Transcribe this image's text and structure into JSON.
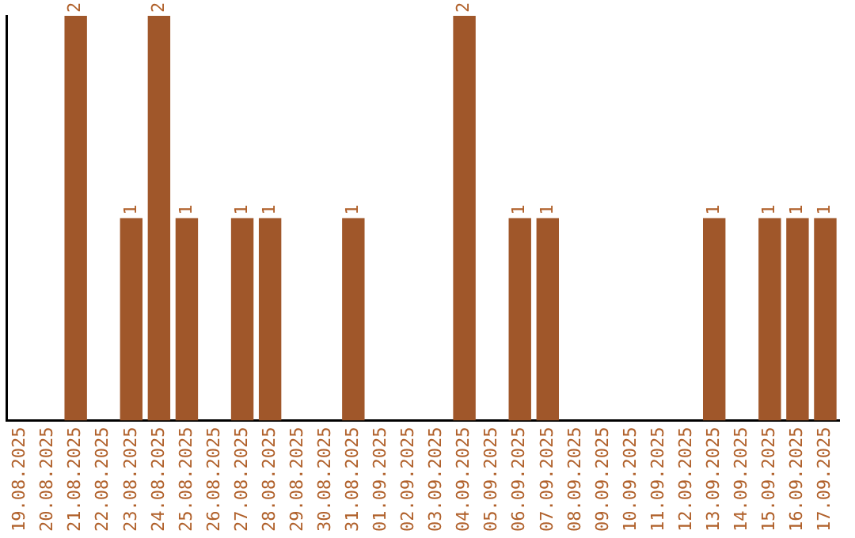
{
  "chart_data": {
    "type": "bar",
    "categories": [
      "19.08.2025",
      "20.08.2025",
      "21.08.2025",
      "22.08.2025",
      "23.08.2025",
      "24.08.2025",
      "25.08.2025",
      "26.08.2025",
      "27.08.2025",
      "28.08.2025",
      "29.08.2025",
      "30.08.2025",
      "31.08.2025",
      "01.09.2025",
      "02.09.2025",
      "03.09.2025",
      "04.09.2025",
      "05.09.2025",
      "06.09.2025",
      "07.09.2025",
      "08.09.2025",
      "09.09.2025",
      "10.09.2025",
      "11.09.2025",
      "12.09.2025",
      "13.09.2025",
      "14.09.2025",
      "15.09.2025",
      "16.09.2025",
      "17.09.2025"
    ],
    "values": [
      0,
      0,
      2,
      0,
      1,
      2,
      1,
      0,
      1,
      1,
      0,
      0,
      1,
      0,
      0,
      0,
      2,
      0,
      1,
      1,
      0,
      0,
      0,
      0,
      0,
      1,
      0,
      1,
      1,
      1
    ],
    "value_labels": [
      null,
      null,
      "2",
      null,
      "1",
      "2",
      "1",
      null,
      "1",
      "1",
      null,
      null,
      "1",
      null,
      null,
      null,
      "2",
      null,
      "1",
      "1",
      null,
      null,
      null,
      null,
      null,
      "1",
      null,
      "1",
      "1",
      "1"
    ],
    "color": "#a0572a",
    "ylim": [
      0,
      2
    ],
    "tick_labels": "x",
    "grid": false,
    "legend": false
  }
}
